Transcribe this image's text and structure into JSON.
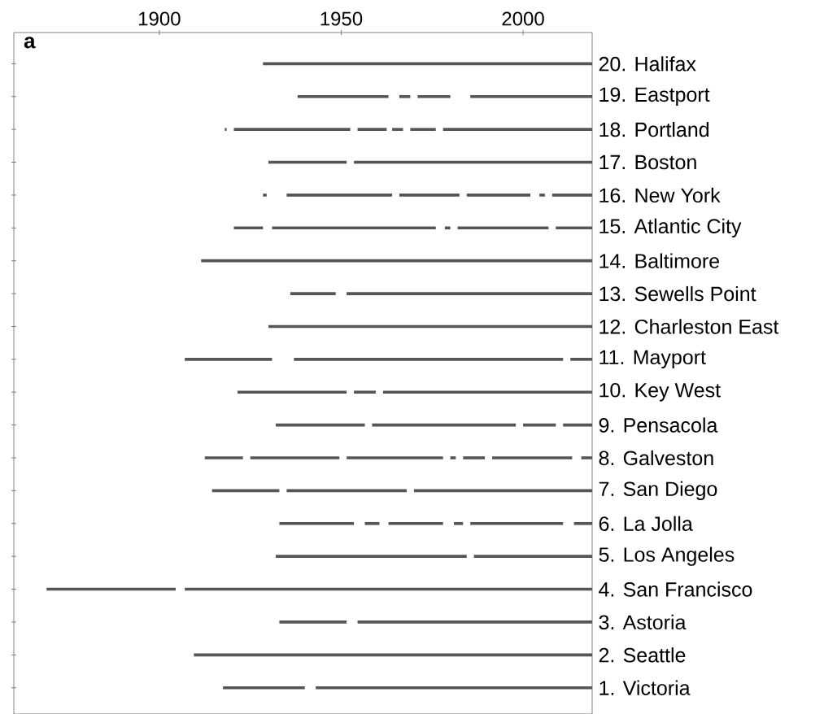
{
  "chart_data": {
    "type": "bar",
    "orientation": "horizontal",
    "annotations": [
      "a"
    ],
    "categories": [
      "20. Halifax",
      "19. Eastport",
      "18. Portland",
      "17. Boston",
      "16. New York",
      "15. Atlantic City",
      "14. Baltimore",
      "13. Sewells Point",
      "12. Charleston East",
      "11. Mayport",
      "10. Key West",
      "9. Pensacola",
      "8. Galveston",
      "7. San Diego",
      "6. La Jolla",
      "5. Los Angeles",
      "4. San Francisco",
      "3. Astoria",
      "2. Seattle",
      "1. Victoria"
    ],
    "xlim": [
      1860,
      2019
    ],
    "xticks": [
      1900,
      1950,
      2000
    ],
    "series": [
      {
        "color": "#555555",
        "base": [
          1928.5,
          1938,
          1918,
          1930,
          1928.5,
          1920.5,
          1911.5,
          1936,
          1930,
          1907,
          1921.5,
          1932,
          1912.5,
          1914.5,
          1933,
          1932,
          1869,
          1933,
          1909.5,
          1917.5
        ],
        "values": [
          90.5,
          25,
          0.5,
          21.5,
          1,
          8,
          107.5,
          12.5,
          89,
          24,
          30,
          24.5,
          10.5,
          18.5,
          20.5,
          52.5,
          35.5,
          18.5,
          109.5,
          22.5
        ]
      },
      {
        "color": "#555555",
        "base": [
          null,
          1966,
          1920.5,
          1953.5,
          1935,
          1931,
          null,
          1951.5,
          null,
          1937,
          1953.5,
          1958.5,
          1925,
          1935,
          1956.5,
          1986.5,
          1907,
          1954.5,
          null,
          1943
        ],
        "values": [
          null,
          3,
          32,
          65.5,
          29,
          45,
          null,
          67.5,
          null,
          74,
          6,
          39.5,
          24.5,
          33,
          4,
          32.5,
          112,
          64.5,
          null,
          76
        ]
      },
      {
        "color": "#555555",
        "base": [
          null,
          1971,
          1954.5,
          null,
          1966,
          1978.5,
          null,
          null,
          null,
          2013,
          1961.5,
          2000,
          1951.5,
          1970,
          1963,
          null,
          null,
          null,
          null,
          null
        ],
        "values": [
          null,
          9,
          8,
          null,
          16.5,
          1.5,
          null,
          null,
          null,
          6,
          57.5,
          9,
          26.5,
          49,
          15,
          null,
          null,
          null,
          null,
          null
        ]
      },
      {
        "color": "#555555",
        "base": [
          null,
          1985.5,
          1964,
          null,
          1984.5,
          1982,
          null,
          null,
          null,
          null,
          null,
          2011,
          1980,
          null,
          1981,
          null,
          null,
          null,
          null,
          null
        ],
        "values": [
          null,
          33.5,
          3,
          null,
          17.5,
          25,
          null,
          null,
          null,
          null,
          null,
          8,
          1.5,
          null,
          2.5,
          null,
          null,
          null,
          null,
          null
        ]
      },
      {
        "color": "#555555",
        "base": [
          null,
          null,
          1969,
          null,
          2004.5,
          2009,
          null,
          null,
          null,
          null,
          null,
          null,
          1983.5,
          null,
          1985.5,
          null,
          null,
          null,
          null,
          null
        ],
        "values": [
          null,
          null,
          7,
          null,
          1.5,
          10,
          null,
          null,
          null,
          null,
          null,
          null,
          6,
          null,
          25.5,
          null,
          null,
          null,
          null,
          null
        ]
      },
      {
        "color": "#555555",
        "base": [
          null,
          null,
          1978,
          null,
          2008,
          null,
          null,
          null,
          null,
          null,
          null,
          null,
          1991.5,
          null,
          2014,
          null,
          null,
          null,
          null,
          null
        ],
        "values": [
          null,
          null,
          41,
          null,
          11,
          null,
          null,
          null,
          null,
          null,
          null,
          null,
          22,
          null,
          5,
          null,
          null,
          null,
          null,
          null
        ]
      },
      {
        "color": "#555555",
        "base": [
          null,
          null,
          null,
          null,
          null,
          null,
          null,
          null,
          null,
          null,
          null,
          null,
          2016,
          null,
          null,
          null,
          null,
          null,
          null,
          null
        ],
        "values": [
          null,
          null,
          null,
          null,
          null,
          null,
          null,
          null,
          null,
          null,
          null,
          null,
          3,
          null,
          null,
          null,
          null,
          null,
          null,
          null
        ]
      }
    ]
  }
}
